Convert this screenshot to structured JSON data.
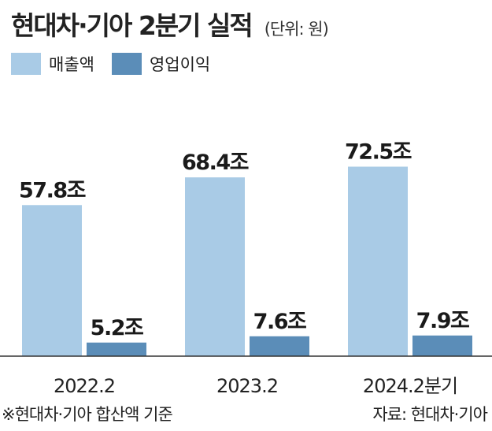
{
  "header": {
    "title": "현대차·기아 2분기 실적",
    "unit": "(단위: 원)"
  },
  "legend": [
    {
      "label": "매출액",
      "color": "#a9cbe6"
    },
    {
      "label": "영업이익",
      "color": "#5b8db8"
    }
  ],
  "chart_data": {
    "type": "bar",
    "categories": [
      "2022.2",
      "2023.2",
      "2024.2분기"
    ],
    "series": [
      {
        "name": "매출액",
        "values": [
          57.8,
          68.4,
          72.5
        ],
        "labels": [
          "57.8조",
          "68.4조",
          "72.5조"
        ],
        "color": "#a9cbe6"
      },
      {
        "name": "영업이익",
        "values": [
          5.2,
          7.6,
          7.9
        ],
        "labels": [
          "5.2조",
          "7.6조",
          "7.9조"
        ],
        "color": "#5b8db8"
      }
    ],
    "title": "현대차·기아 2분기 실적",
    "xlabel": "",
    "ylabel": "",
    "unit": "(단위: 원)",
    "grid": false,
    "legend_position": "top-left"
  },
  "footer": {
    "note": "※현대차·기아 합산액 기준",
    "source": "자료: 현대차·기아"
  }
}
